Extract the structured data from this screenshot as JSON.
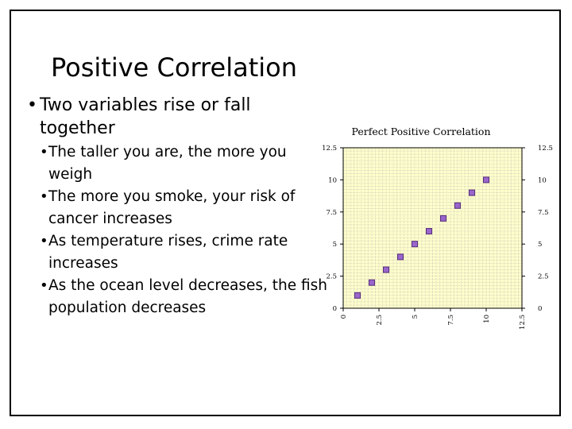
{
  "slide": {
    "title": "Positive Correlation",
    "bullets": [
      {
        "text": "Two variables rise or fall together",
        "sub": [
          "The taller you are, the more you weigh",
          "The more you smoke, your risk of cancer increases",
          "As temperature rises, crime rate increases",
          "As the ocean level decreases, the fish population decreases"
        ]
      }
    ]
  },
  "chart_data": {
    "type": "scatter",
    "title": "Perfect Positive Correlation",
    "xlabel": "",
    "ylabel": "",
    "xlim": [
      0,
      12.5
    ],
    "ylim": [
      0,
      12.5
    ],
    "x_ticks": [
      "0",
      "2.5",
      "5",
      "7.5",
      "10",
      "12.5"
    ],
    "y_ticks": [
      "0",
      "2.5",
      "5",
      "7.5",
      "10",
      "12.5"
    ],
    "points": [
      {
        "x": 1,
        "y": 1
      },
      {
        "x": 2,
        "y": 2
      },
      {
        "x": 3,
        "y": 3
      },
      {
        "x": 4,
        "y": 4
      },
      {
        "x": 5,
        "y": 5
      },
      {
        "x": 6,
        "y": 6
      },
      {
        "x": 7,
        "y": 7
      },
      {
        "x": 8,
        "y": 8
      },
      {
        "x": 9,
        "y": 9
      },
      {
        "x": 10,
        "y": 10
      }
    ],
    "grid": true,
    "legend": "none",
    "colors": {
      "plot_bg": "#ffffcc",
      "grid": "#b0b0b0",
      "marker_fill": "#9966cc",
      "marker_stroke": "#5a2f7a"
    }
  }
}
